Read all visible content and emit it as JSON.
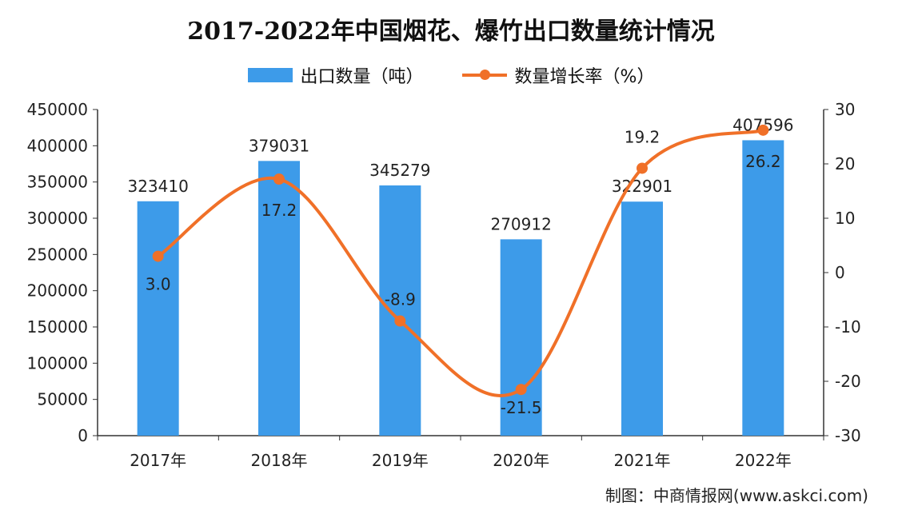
{
  "chart_data": {
    "type": "bar+line",
    "title": "2017-2022年中国烟花、爆竹出口数量统计情况",
    "categories": [
      "2017年",
      "2018年",
      "2019年",
      "2020年",
      "2021年",
      "2022年"
    ],
    "series": [
      {
        "name": "出口数量（吨）",
        "type": "bar",
        "axis": "left",
        "color": "#3d9be9",
        "values": [
          323410,
          379031,
          345279,
          270912,
          322901,
          407596
        ]
      },
      {
        "name": "数量增长率（%）",
        "type": "line",
        "axis": "right",
        "color": "#f07028",
        "smooth": true,
        "values": [
          3.0,
          17.2,
          -8.9,
          -21.5,
          19.2,
          26.2
        ]
      }
    ],
    "left_axis": {
      "ylim": [
        0,
        450000
      ],
      "ticks": [
        0,
        50000,
        100000,
        150000,
        200000,
        250000,
        300000,
        350000,
        400000,
        450000
      ]
    },
    "right_axis": {
      "ylim": [
        -30,
        30
      ],
      "ticks": [
        -30,
        -20,
        -10,
        0,
        10,
        20,
        30
      ]
    },
    "legend_position": "top",
    "grid": false
  },
  "source": "制图：中商情报网(www.askci.com)"
}
